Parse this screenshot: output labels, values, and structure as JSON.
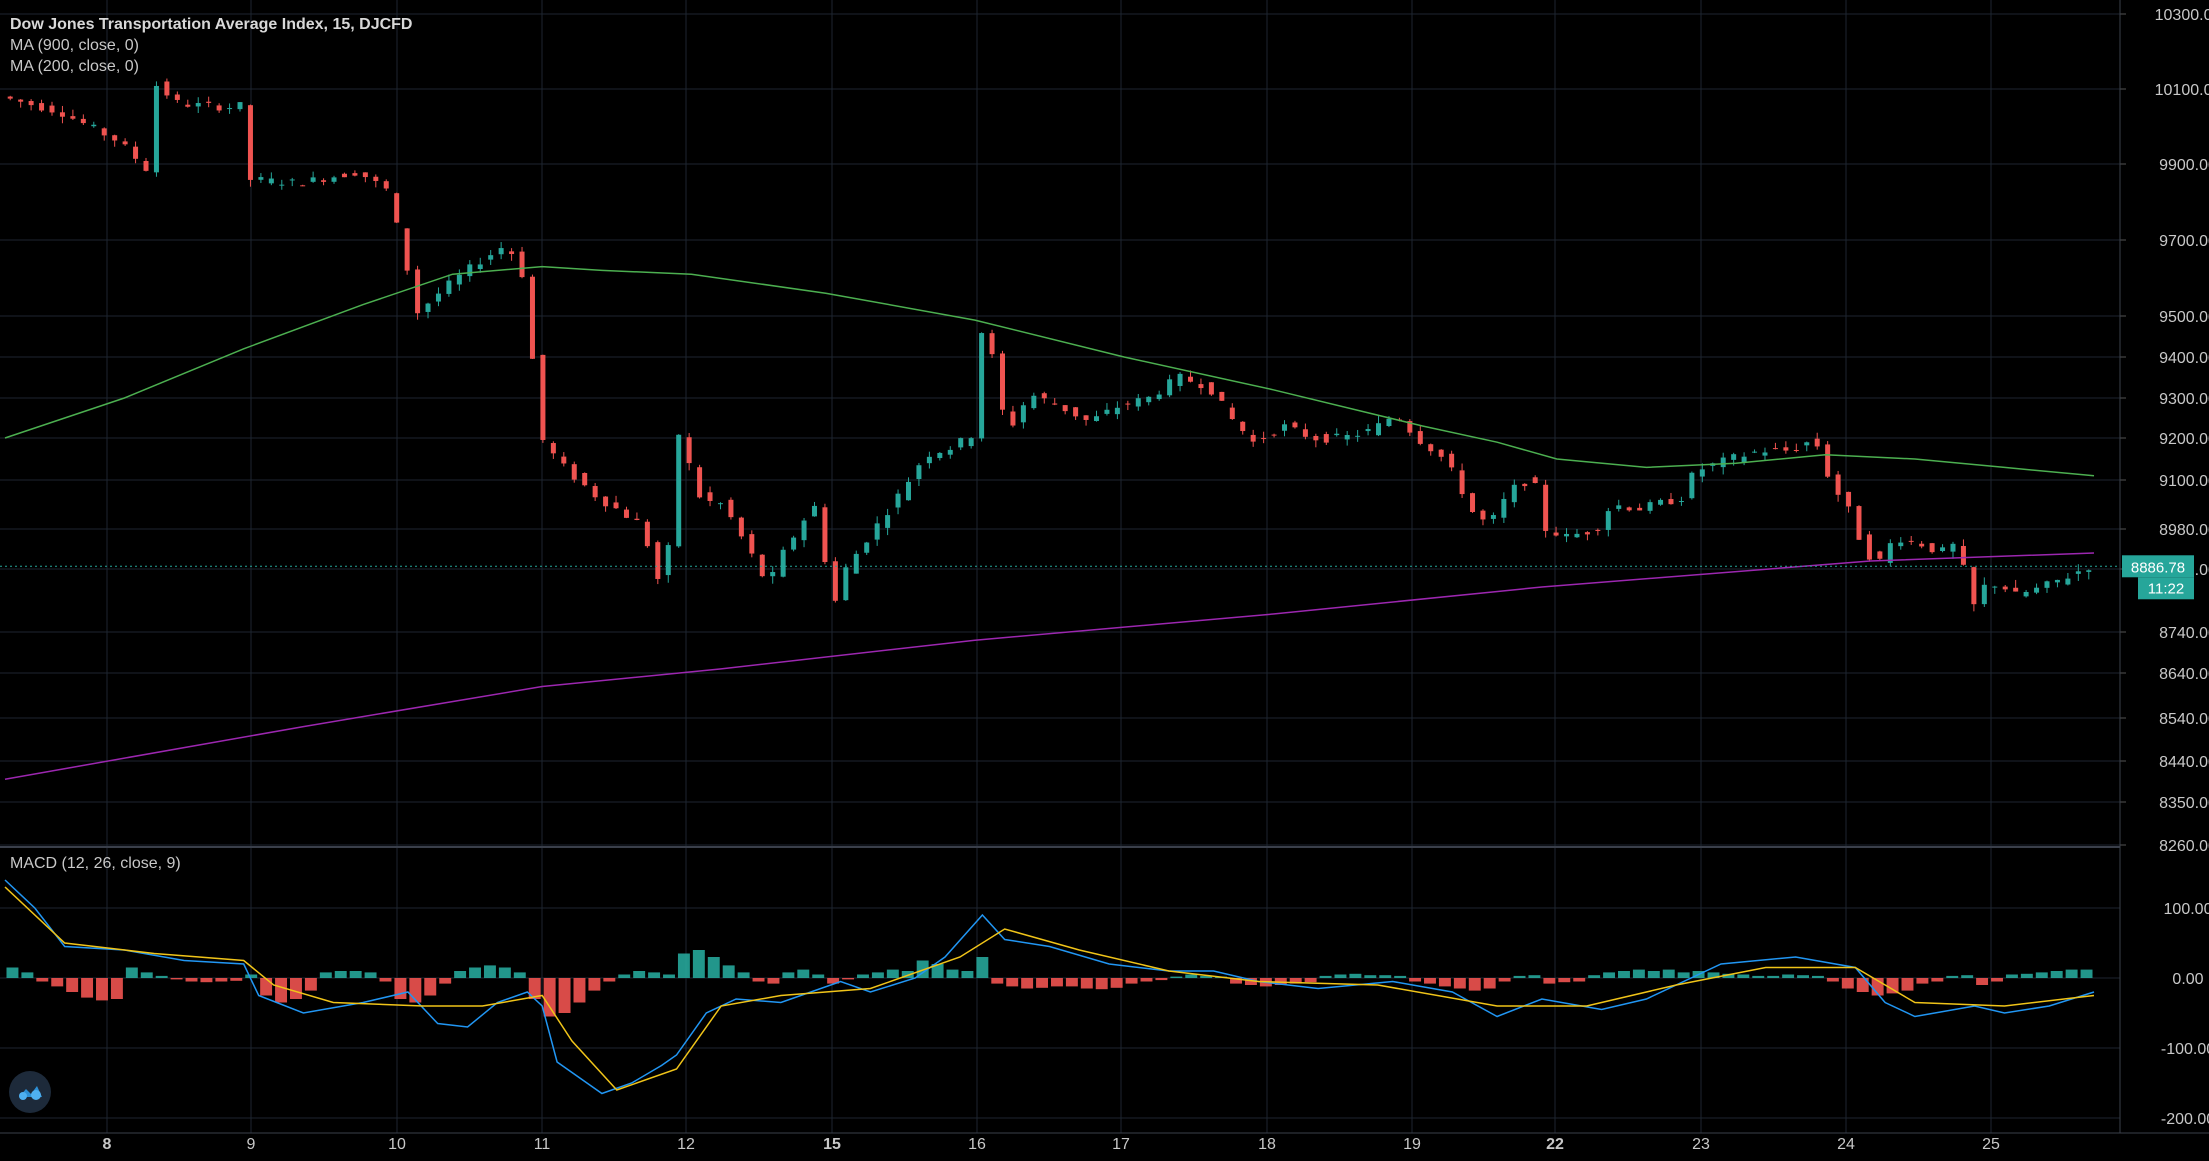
{
  "header": {
    "title": "Dow Jones Transportation Average Index, 15, DJCFD",
    "ma900_label": "MA (900, close, 0)",
    "ma200_label": "MA (200, close, 0)"
  },
  "macd_label": "MACD (12, 26, close, 9)",
  "colors": {
    "background": "#000000",
    "grid": "#1e2530",
    "up": "#26a69a",
    "down": "#ef5350",
    "ma900": "#9c27b0",
    "ma200": "#4caf50",
    "macd": "#2196f3",
    "signal": "#f0c419",
    "price_tag": "#26a69a",
    "axis_text": "#c8c8c8"
  },
  "chart_data": [
    {
      "type": "candlestick",
      "title": "Dow Jones Transportation Average Index, 15, DJCFD",
      "x_tick_labels": [
        "8",
        "9",
        "10",
        "11",
        "12",
        "15",
        "16",
        "17",
        "18",
        "19",
        "22",
        "23",
        "24",
        "25"
      ],
      "y_tick_labels": [
        "10300.00",
        "10100.00",
        "9900.00",
        "9700.00",
        "9500.00",
        "9400.00",
        "9300.00",
        "9200.00",
        "9100.00",
        "8980.00",
        "8880.00",
        "8740.00",
        "8640.00",
        "8540.00",
        "8440.00",
        "8350.00",
        "8260.00"
      ],
      "current_price": "8886.78",
      "countdown": "11:22",
      "price_path": [
        [
          0,
          10080
        ],
        [
          4,
          10040
        ],
        [
          8,
          9960
        ],
        [
          10,
          9880
        ],
        [
          10.2,
          10120
        ],
        [
          12,
          10060
        ],
        [
          16,
          10050
        ],
        [
          16.4,
          10070
        ],
        [
          16.6,
          9860
        ],
        [
          20,
          9850
        ],
        [
          24,
          9880
        ],
        [
          26,
          9830
        ],
        [
          26.4,
          9770
        ],
        [
          28,
          9510
        ],
        [
          30,
          9580
        ],
        [
          32,
          9640
        ],
        [
          34,
          9690
        ],
        [
          35.5,
          9570
        ],
        [
          35.9,
          9220
        ],
        [
          37.5,
          9140
        ],
        [
          40,
          9060
        ],
        [
          43,
          8990
        ],
        [
          44.5,
          8810
        ],
        [
          45.5,
          9210
        ],
        [
          47,
          9050
        ],
        [
          48.5,
          9040
        ],
        [
          50,
          8940
        ],
        [
          51.5,
          8840
        ],
        [
          52.5,
          8920
        ],
        [
          54,
          9010
        ],
        [
          55,
          9050
        ],
        [
          55.6,
          8760
        ],
        [
          56.5,
          8870
        ],
        [
          58,
          8950
        ],
        [
          60,
          9050
        ],
        [
          62,
          9160
        ],
        [
          64,
          9180
        ],
        [
          65.2,
          9210
        ],
        [
          65.6,
          9480
        ],
        [
          66.5,
          9400
        ],
        [
          67.5,
          9210
        ],
        [
          69,
          9310
        ],
        [
          71,
          9280
        ],
        [
          73,
          9240
        ],
        [
          75,
          9280
        ],
        [
          77,
          9300
        ],
        [
          79,
          9350
        ],
        [
          81,
          9330
        ],
        [
          82.5,
          9250
        ],
        [
          84,
          9190
        ],
        [
          86,
          9230
        ],
        [
          88,
          9200
        ],
        [
          90,
          9200
        ],
        [
          92,
          9220
        ],
        [
          93.5,
          9260
        ],
        [
          93.8,
          9250
        ],
        [
          95,
          9200
        ],
        [
          96.5,
          9160
        ],
        [
          97.5,
          9110
        ],
        [
          99,
          9000
        ],
        [
          100,
          9000
        ],
        [
          101,
          9060
        ],
        [
          102,
          9100
        ],
        [
          103,
          9080
        ],
        [
          103.6,
          8980
        ],
        [
          105,
          8960
        ],
        [
          107,
          8980
        ],
        [
          108,
          9040
        ],
        [
          110,
          9030
        ],
        [
          112,
          9050
        ],
        [
          113,
          9060
        ],
        [
          113.5,
          9120
        ],
        [
          116,
          9150
        ],
        [
          118,
          9170
        ],
        [
          120,
          9170
        ],
        [
          121,
          9190
        ],
        [
          122,
          9180
        ],
        [
          122.6,
          9100
        ],
        [
          124,
          9020
        ],
        [
          125,
          8920
        ],
        [
          126,
          8900
        ],
        [
          127,
          8960
        ],
        [
          129,
          8940
        ],
        [
          130,
          8920
        ],
        [
          131,
          8940
        ],
        [
          131.6,
          8880
        ],
        [
          132,
          8780
        ],
        [
          133,
          8840
        ],
        [
          134,
          8850
        ],
        [
          135,
          8820
        ],
        [
          137,
          8840
        ],
        [
          139,
          8870
        ],
        [
          140,
          8886.78
        ]
      ],
      "ma900_path": [
        [
          0,
          8400
        ],
        [
          20,
          8520
        ],
        [
          36,
          8610
        ],
        [
          48,
          8650
        ],
        [
          65,
          8720
        ],
        [
          85,
          8780
        ],
        [
          103,
          8840
        ],
        [
          125,
          8900
        ],
        [
          140,
          8920
        ]
      ],
      "ma200_path": [
        [
          0,
          9200
        ],
        [
          8,
          9300
        ],
        [
          16,
          9420
        ],
        [
          24,
          9530
        ],
        [
          30,
          9610
        ],
        [
          36,
          9630
        ],
        [
          40,
          9620
        ],
        [
          46,
          9610
        ],
        [
          55,
          9560
        ],
        [
          65,
          9490
        ],
        [
          75,
          9400
        ],
        [
          85,
          9320
        ],
        [
          95,
          9230
        ],
        [
          100,
          9190
        ],
        [
          104,
          9150
        ],
        [
          110,
          9130
        ],
        [
          116,
          9140
        ],
        [
          122,
          9160
        ],
        [
          128,
          9150
        ],
        [
          134,
          9130
        ],
        [
          140,
          9110
        ]
      ],
      "ylabel": "",
      "xlabel": ""
    },
    {
      "type": "macd",
      "title": "MACD (12, 26, close, 9)",
      "y_tick_labels": [
        "100.00",
        "0.00",
        "-100.00",
        "-200.00"
      ],
      "ylim": [
        -200,
        150
      ],
      "macd_path": [
        [
          0,
          140
        ],
        [
          2,
          100
        ],
        [
          4,
          45
        ],
        [
          8,
          40
        ],
        [
          12,
          25
        ],
        [
          16,
          20
        ],
        [
          17,
          -25
        ],
        [
          20,
          -50
        ],
        [
          24,
          -35
        ],
        [
          27,
          -20
        ],
        [
          29,
          -65
        ],
        [
          31,
          -70
        ],
        [
          33,
          -35
        ],
        [
          35,
          -20
        ],
        [
          36,
          -40
        ],
        [
          37,
          -120
        ],
        [
          40,
          -165
        ],
        [
          42,
          -150
        ],
        [
          44,
          -125
        ],
        [
          45,
          -110
        ],
        [
          47,
          -50
        ],
        [
          49,
          -30
        ],
        [
          52,
          -35
        ],
        [
          54,
          -20
        ],
        [
          56,
          -5
        ],
        [
          58,
          -20
        ],
        [
          61,
          0
        ],
        [
          63,
          30
        ],
        [
          65.5,
          90
        ],
        [
          67,
          55
        ],
        [
          70,
          45
        ],
        [
          74,
          20
        ],
        [
          78,
          10
        ],
        [
          81,
          10
        ],
        [
          84,
          -5
        ],
        [
          88,
          -15
        ],
        [
          93,
          -5
        ],
        [
          97,
          -20
        ],
        [
          100,
          -55
        ],
        [
          103,
          -30
        ],
        [
          107,
          -45
        ],
        [
          110,
          -30
        ],
        [
          115,
          20
        ],
        [
          120,
          30
        ],
        [
          124,
          15
        ],
        [
          126,
          -35
        ],
        [
          128,
          -55
        ],
        [
          132,
          -40
        ],
        [
          134,
          -50
        ],
        [
          137,
          -40
        ],
        [
          140,
          -20
        ]
      ],
      "signal_path": [
        [
          0,
          130
        ],
        [
          4,
          50
        ],
        [
          10,
          35
        ],
        [
          16,
          25
        ],
        [
          18,
          -10
        ],
        [
          22,
          -35
        ],
        [
          28,
          -40
        ],
        [
          32,
          -40
        ],
        [
          36,
          -25
        ],
        [
          38,
          -90
        ],
        [
          41,
          -160
        ],
        [
          45,
          -130
        ],
        [
          48,
          -40
        ],
        [
          52,
          -25
        ],
        [
          58,
          -15
        ],
        [
          64,
          30
        ],
        [
          67,
          70
        ],
        [
          72,
          40
        ],
        [
          78,
          10
        ],
        [
          84,
          -5
        ],
        [
          92,
          -10
        ],
        [
          100,
          -40
        ],
        [
          106,
          -40
        ],
        [
          112,
          -10
        ],
        [
          118,
          15
        ],
        [
          124,
          15
        ],
        [
          128,
          -35
        ],
        [
          134,
          -40
        ],
        [
          140,
          -25
        ]
      ],
      "histogram": [
        [
          0.5,
          15
        ],
        [
          1.5,
          8
        ],
        [
          2.5,
          -5
        ],
        [
          3.5,
          -12
        ],
        [
          4.5,
          -20
        ],
        [
          5.5,
          -28
        ],
        [
          6.5,
          -32
        ],
        [
          7.5,
          -30
        ],
        [
          8.5,
          15
        ],
        [
          9.5,
          8
        ],
        [
          10.5,
          3
        ],
        [
          11.5,
          -2
        ],
        [
          12.5,
          -5
        ],
        [
          13.5,
          -6
        ],
        [
          14.5,
          -5
        ],
        [
          15.5,
          -4
        ],
        [
          16.5,
          5
        ],
        [
          17.5,
          -25
        ],
        [
          18.5,
          -35
        ],
        [
          19.5,
          -30
        ],
        [
          20.5,
          -18
        ],
        [
          21.5,
          8
        ],
        [
          22.5,
          10
        ],
        [
          23.5,
          10
        ],
        [
          24.5,
          8
        ],
        [
          25.5,
          -5
        ],
        [
          26.5,
          -30
        ],
        [
          27.5,
          -35
        ],
        [
          28.5,
          -25
        ],
        [
          29.5,
          -8
        ],
        [
          30.5,
          10
        ],
        [
          31.5,
          15
        ],
        [
          32.5,
          18
        ],
        [
          33.5,
          15
        ],
        [
          34.5,
          8
        ],
        [
          35.5,
          -30
        ],
        [
          36.5,
          -55
        ],
        [
          37.5,
          -50
        ],
        [
          38.5,
          -35
        ],
        [
          39.5,
          -18
        ],
        [
          40.5,
          -5
        ],
        [
          41.5,
          5
        ],
        [
          42.5,
          10
        ],
        [
          43.5,
          8
        ],
        [
          44.5,
          5
        ],
        [
          45.5,
          35
        ],
        [
          46.5,
          40
        ],
        [
          47.5,
          30
        ],
        [
          48.5,
          18
        ],
        [
          49.5,
          8
        ],
        [
          50.5,
          -5
        ],
        [
          51.5,
          -8
        ],
        [
          52.5,
          8
        ],
        [
          53.5,
          12
        ],
        [
          54.5,
          5
        ],
        [
          55.5,
          -8
        ],
        [
          56.5,
          -2
        ],
        [
          57.5,
          5
        ],
        [
          58.5,
          8
        ],
        [
          59.5,
          12
        ],
        [
          60.5,
          10
        ],
        [
          61.5,
          25
        ],
        [
          62.5,
          20
        ],
        [
          63.5,
          12
        ],
        [
          64.5,
          10
        ],
        [
          65.5,
          30
        ],
        [
          66.5,
          -8
        ],
        [
          67.5,
          -12
        ],
        [
          68.5,
          -15
        ],
        [
          69.5,
          -14
        ],
        [
          70.5,
          -12
        ],
        [
          71.5,
          -12
        ],
        [
          72.5,
          -15
        ],
        [
          73.5,
          -16
        ],
        [
          74.5,
          -14
        ],
        [
          75.5,
          -8
        ],
        [
          76.5,
          -5
        ],
        [
          77.5,
          -3
        ],
        [
          78.5,
          2
        ],
        [
          79.5,
          5
        ],
        [
          80.5,
          3
        ],
        [
          81.5,
          2
        ],
        [
          82.5,
          -8
        ],
        [
          83.5,
          -10
        ],
        [
          84.5,
          -12
        ],
        [
          85.5,
          -10
        ],
        [
          86.5,
          -8
        ],
        [
          87.5,
          -6
        ],
        [
          88.5,
          3
        ],
        [
          89.5,
          5
        ],
        [
          90.5,
          6
        ],
        [
          91.5,
          4
        ],
        [
          92.5,
          4
        ],
        [
          93.5,
          3
        ],
        [
          94.5,
          -5
        ],
        [
          95.5,
          -8
        ],
        [
          96.5,
          -12
        ],
        [
          97.5,
          -15
        ],
        [
          98.5,
          -18
        ],
        [
          99.5,
          -15
        ],
        [
          100.5,
          -5
        ],
        [
          101.5,
          3
        ],
        [
          102.5,
          4
        ],
        [
          103.5,
          -8
        ],
        [
          104.5,
          -6
        ],
        [
          105.5,
          -5
        ],
        [
          106.5,
          4
        ],
        [
          107.5,
          8
        ],
        [
          108.5,
          10
        ],
        [
          109.5,
          12
        ],
        [
          110.5,
          10
        ],
        [
          111.5,
          12
        ],
        [
          112.5,
          8
        ],
        [
          113.5,
          10
        ],
        [
          114.5,
          8
        ],
        [
          115.5,
          6
        ],
        [
          116.5,
          5
        ],
        [
          117.5,
          3
        ],
        [
          118.5,
          3
        ],
        [
          119.5,
          5
        ],
        [
          120.5,
          4
        ],
        [
          121.5,
          3
        ],
        [
          122.5,
          -5
        ],
        [
          123.5,
          -15
        ],
        [
          124.5,
          -20
        ],
        [
          125.5,
          -25
        ],
        [
          126.5,
          -22
        ],
        [
          127.5,
          -18
        ],
        [
          128.5,
          -8
        ],
        [
          129.5,
          -5
        ],
        [
          130.5,
          3
        ],
        [
          131.5,
          4
        ],
        [
          132.5,
          -10
        ],
        [
          133.5,
          -5
        ],
        [
          134.5,
          5
        ],
        [
          135.5,
          6
        ],
        [
          136.5,
          8
        ],
        [
          137.5,
          10
        ],
        [
          138.5,
          12
        ],
        [
          139.5,
          12
        ]
      ]
    }
  ]
}
